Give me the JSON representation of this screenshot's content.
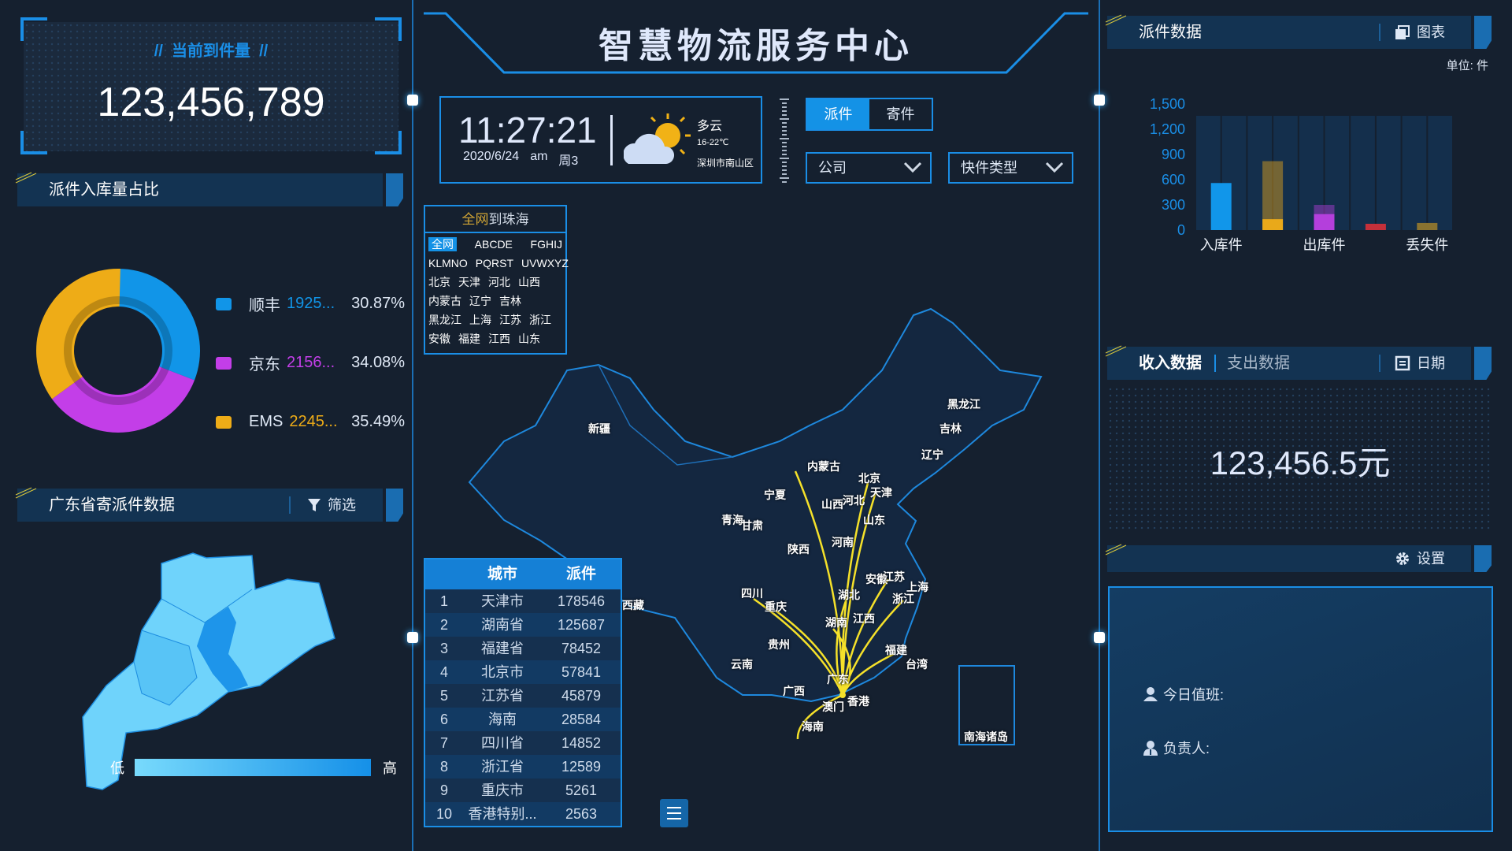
{
  "title": "智慧物流服务中心",
  "arrival": {
    "label": "当前到件量",
    "value": "123,456,789"
  },
  "donut_panel": {
    "title": "派件入库量占比",
    "items": [
      {
        "name": "顺丰",
        "value": "1925...",
        "pct": "30.87%",
        "percent": 30.87,
        "color": "#1195e8"
      },
      {
        "name": "京东",
        "value": "2156...",
        "pct": "34.08%",
        "percent": 34.08,
        "color": "#c33ee8"
      },
      {
        "name": "EMS",
        "value": "2245...",
        "pct": "35.49%",
        "percent": 35.49,
        "color": "#eeac17"
      }
    ]
  },
  "gd_panel": {
    "title": "广东省寄派件数据",
    "filter": "筛选",
    "legend_low": "低",
    "legend_high": "高"
  },
  "clock": {
    "time": "11:27:21",
    "date": "2020/6/24",
    "ampm": "am",
    "weekday": "周3"
  },
  "weather": {
    "desc": "多云",
    "temp": "16-22℃",
    "location": "深圳市南山区"
  },
  "tabs": [
    {
      "label": "派件",
      "active": true
    },
    {
      "label": "寄件",
      "active": false
    }
  ],
  "dropdowns": {
    "company": "公司",
    "type": "快件类型"
  },
  "selector": {
    "title_hl": "全网",
    "title_rest": "到珠海",
    "rows": [
      [
        "全网",
        "ABCDE",
        "FGHIJ"
      ],
      [
        "KLMNO",
        "PQRST",
        "UVWXYZ"
      ],
      [
        "北京",
        "天津",
        "河北",
        "山西"
      ],
      [
        "内蒙古",
        "辽宁",
        "吉林"
      ],
      [
        "黑龙江",
        "上海",
        "江苏",
        "浙江"
      ],
      [
        "安徽",
        "福建",
        "江西",
        "山东"
      ]
    ]
  },
  "table": {
    "headers": [
      "",
      "城市",
      "派件"
    ],
    "rows": [
      [
        "1",
        "天津市",
        "178546"
      ],
      [
        "2",
        "湖南省",
        "125687"
      ],
      [
        "3",
        "福建省",
        "78452"
      ],
      [
        "4",
        "北京市",
        "57841"
      ],
      [
        "5",
        "江苏省",
        "45879"
      ],
      [
        "6",
        "海南",
        "28584"
      ],
      [
        "7",
        "四川省",
        "14852"
      ],
      [
        "8",
        "浙江省",
        "12589"
      ],
      [
        "9",
        "重庆市",
        "5261"
      ],
      [
        "10",
        "香港特别...",
        "2563"
      ]
    ]
  },
  "map": {
    "provinces": [
      "黑龙江",
      "吉林",
      "辽宁",
      "内蒙古",
      "北京",
      "天津",
      "山西",
      "河北",
      "山东",
      "宁夏",
      "青海",
      "甘肃",
      "陕西",
      "河南",
      "安徽",
      "江苏",
      "上海",
      "浙江",
      "湖北",
      "四川",
      "重庆",
      "湖南",
      "江西",
      "贵州",
      "福建",
      "台湾",
      "云南",
      "广东",
      "广西",
      "香港",
      "澳门",
      "海南",
      "新疆",
      "西藏"
    ],
    "inset": "南海诸岛",
    "route_destination": "广东",
    "route_origins": [
      "内蒙古",
      "北京",
      "天津",
      "江苏",
      "浙江",
      "四川",
      "重庆",
      "湖南",
      "湖北",
      "福建",
      "海南"
    ],
    "route_color": "#f5e12a"
  },
  "dispatch_panel": {
    "title": "派件数据",
    "chart_btn": "图表",
    "unit": "单位: 件"
  },
  "chart_data": {
    "type": "bar",
    "categories": [
      "入库件",
      "",
      "出库件",
      "",
      "丢失件"
    ],
    "values": [
      560,
      130,
      190,
      75,
      85
    ],
    "shadow_values": [
      null,
      820,
      300,
      null,
      null
    ],
    "colors": [
      "#1196ea",
      "#e9a91a",
      "#b43fdc",
      "#c5303a",
      "#8a7330"
    ],
    "yticks": [
      0,
      300,
      600,
      900,
      1200,
      1500
    ],
    "ylim": [
      0,
      1500
    ],
    "background_max": 1360
  },
  "income_panel": {
    "tab_active": "收入数据",
    "tab_other": "支出数据",
    "date_btn": "日期",
    "value": "123,456.5元"
  },
  "settings_panel": {
    "btn": "设置",
    "duty_label": "今日值班:",
    "manager_label": "负责人:"
  }
}
